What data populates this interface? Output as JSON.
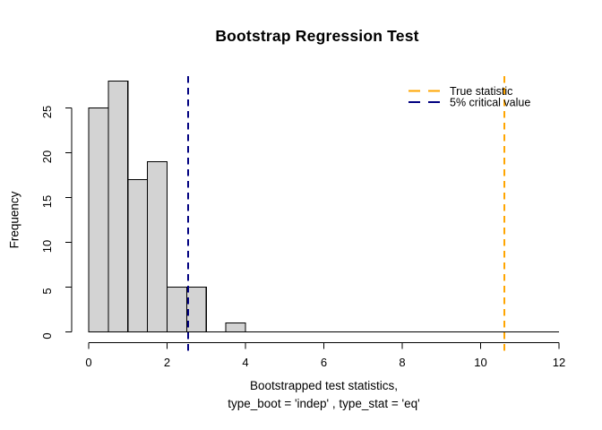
{
  "chart_data": {
    "type": "bar",
    "subtype": "histogram",
    "title": "Bootstrap Regression Test",
    "xlabel_line1": "Bootstrapped test statistics,",
    "xlabel_line2": "type_boot = 'indep' , type_stat = 'eq'",
    "ylabel": "Frequency",
    "bin_start": 0,
    "bin_width": 0.5,
    "counts": [
      25,
      28,
      17,
      19,
      5,
      5,
      0,
      1
    ],
    "x_ticks": [
      0,
      2,
      4,
      6,
      8,
      10,
      12
    ],
    "y_ticks": [
      0,
      5,
      10,
      15,
      20,
      25
    ],
    "xlim": [
      0,
      12
    ],
    "ylim": [
      0,
      28
    ],
    "grid": false,
    "bar_fill_color": "#d3d3d3",
    "bar_stroke_color": "#000000",
    "axis_color": "#000000",
    "vlines": [
      {
        "name": "true-statistic",
        "value": 10.61,
        "color": "#FFA500",
        "style": "dashed"
      },
      {
        "name": "critical-value",
        "value": 2.54,
        "color": "#000080",
        "style": "dashed"
      }
    ],
    "legend": {
      "position": "top-right",
      "entries": [
        {
          "label": "True statistic",
          "color": "#FFA500",
          "line_style": "dashed"
        },
        {
          "label": "5% critical value",
          "color": "#000080",
          "line_style": "dashed"
        }
      ]
    }
  }
}
